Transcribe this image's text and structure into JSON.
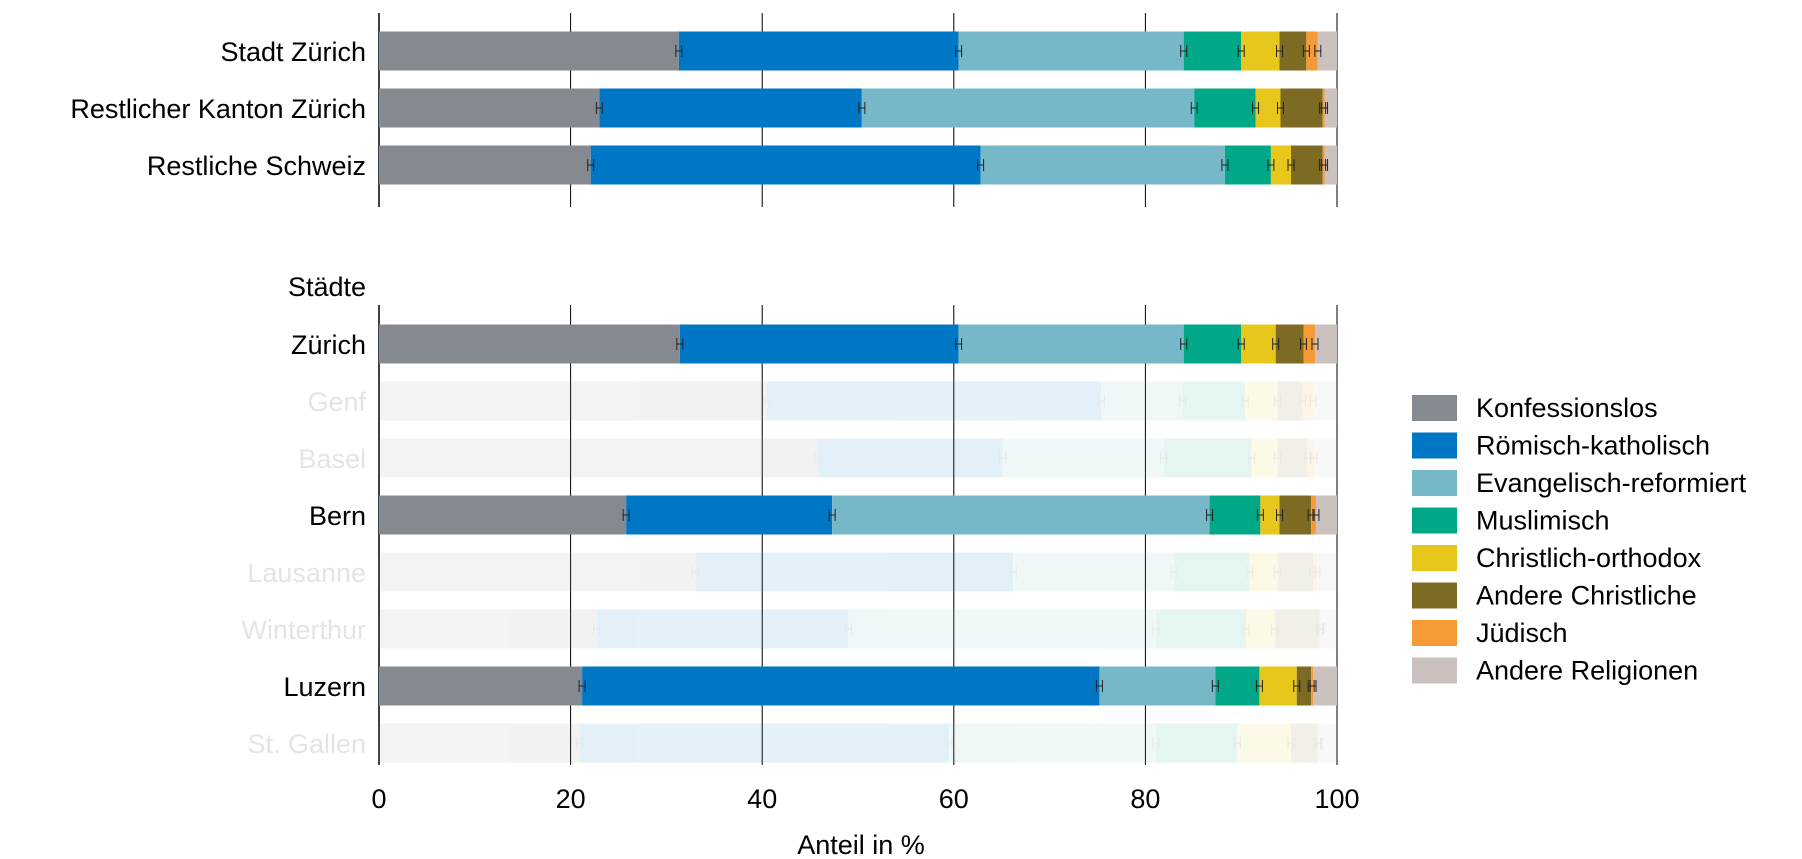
{
  "chart_data": {
    "type": "bar",
    "orientation": "horizontal",
    "stacked": true,
    "xlabel": "Anteil in %",
    "xlim": [
      0,
      100
    ],
    "xticks": [
      "0",
      "20",
      "40",
      "60",
      "80",
      "100"
    ],
    "group_label": "Städte",
    "grid": "vertical",
    "legend_position": "right",
    "series": [
      {
        "name": "Konfessionslos",
        "color": "#858990"
      },
      {
        "name": "Römisch-katholisch",
        "color": "#0077C4"
      },
      {
        "name": "Evangelisch-reformiert",
        "color": "#77B8C8"
      },
      {
        "name": "Muslimisch",
        "color": "#00A887"
      },
      {
        "name": "Christlich-orthodox",
        "color": "#E8C71D"
      },
      {
        "name": "Andere Christliche",
        "color": "#7D6A23"
      },
      {
        "name": "Jüdisch",
        "color": "#F59A35"
      },
      {
        "name": "Andere Religionen",
        "color": "#CBC1BE"
      }
    ],
    "panels": [
      {
        "rows": [
          {
            "label": "Stadt Zürich",
            "highlighted": true,
            "values": [
              31.3,
              29.2,
              23.5,
              6.0,
              4.0,
              2.8,
              1.2,
              2.0
            ]
          },
          {
            "label": "Restlicher Kanton Zürich",
            "highlighted": true,
            "values": [
              23.0,
              27.4,
              34.7,
              6.4,
              2.6,
              4.4,
              0.2,
              1.3
            ]
          },
          {
            "label": "Restliche Schweiz",
            "highlighted": true,
            "values": [
              22.1,
              40.7,
              25.5,
              4.8,
              2.1,
              3.3,
              0.2,
              1.3
            ]
          }
        ]
      },
      {
        "rows": [
          {
            "label": "Zürich",
            "highlighted": true,
            "values": [
              31.4,
              29.1,
              23.5,
              6.0,
              3.6,
              2.9,
              1.2,
              2.3
            ]
          },
          {
            "label": "Genf",
            "highlighted": false,
            "values": [
              40.5,
              34.9,
              8.5,
              6.5,
              3.4,
              2.6,
              1.1,
              2.5
            ]
          },
          {
            "label": "Basel",
            "highlighted": false,
            "values": [
              45.8,
              19.3,
              16.8,
              9.2,
              2.7,
              3.1,
              0.7,
              2.4
            ]
          },
          {
            "label": "Bern",
            "highlighted": true,
            "values": [
              25.8,
              21.5,
              39.4,
              5.3,
              2.0,
              3.3,
              0.5,
              2.2
            ]
          },
          {
            "label": "Lausanne",
            "highlighted": false,
            "values": [
              33.0,
              33.2,
              16.8,
              7.9,
              2.9,
              3.7,
              0.4,
              2.1
            ]
          },
          {
            "label": "Winterthur",
            "highlighted": false,
            "values": [
              22.7,
              26.3,
              32.1,
              9.4,
              3.0,
              4.7,
              0.1,
              1.7
            ]
          },
          {
            "label": "Luzern",
            "highlighted": true,
            "values": [
              21.2,
              54.0,
              12.1,
              4.6,
              3.9,
              1.5,
              0.2,
              2.5
            ]
          },
          {
            "label": "St. Gallen",
            "highlighted": false,
            "values": [
              20.9,
              38.6,
              21.6,
              8.5,
              5.6,
              2.8,
              0.1,
              1.9
            ]
          }
        ]
      }
    ]
  }
}
